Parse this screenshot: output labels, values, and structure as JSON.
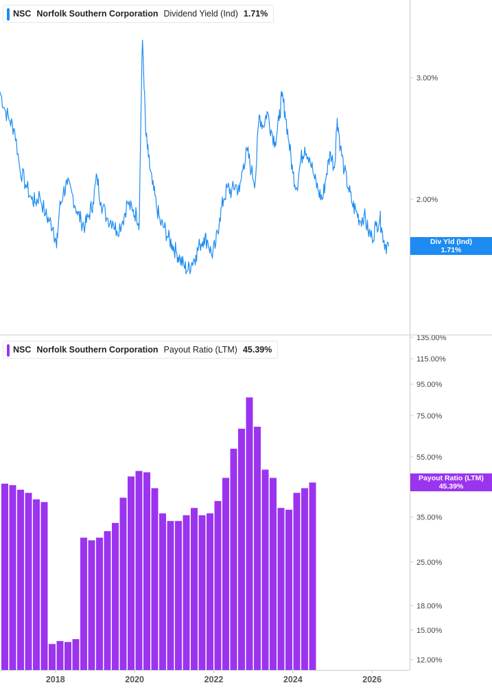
{
  "colors": {
    "yield_line": "#1d8bf1",
    "payout_bar": "#9b34ef",
    "axis": "#c8c8c8",
    "text": "#222222"
  },
  "legend_top": {
    "ticker": "NSC",
    "company": "Norfolk Southern Corporation",
    "metric": "Dividend Yield (Ind)",
    "value": "1.71%"
  },
  "legend_bottom": {
    "ticker": "NSC",
    "company": "Norfolk Southern Corporation",
    "metric": "Payout Ratio (LTM)",
    "value": "45.39%"
  },
  "badge_top": {
    "label": "Div Yld (Ind)",
    "value": "1.71%"
  },
  "badge_bottom": {
    "label": "Payout Ratio (LTM)",
    "value": "45.39%"
  },
  "chart_data": [
    {
      "type": "line",
      "name": "Dividend Yield (Ind)",
      "scale": "log",
      "ylim": [
        1.48,
        3.6
      ],
      "y_ticks": [
        3.0,
        2.0
      ],
      "y_tick_labels": [
        "3.00%",
        "2.00%"
      ],
      "x_ticks": [
        2018,
        2020,
        2022,
        2024,
        2026
      ],
      "xlim": [
        2016.6,
        2026.95
      ],
      "last_value": 1.71,
      "points": [
        [
          2016.6,
          2.86
        ],
        [
          2016.72,
          2.7
        ],
        [
          2016.85,
          2.6
        ],
        [
          2016.97,
          2.52
        ],
        [
          2017.1,
          2.22
        ],
        [
          2017.25,
          2.1
        ],
        [
          2017.4,
          2.0
        ],
        [
          2017.5,
          1.98
        ],
        [
          2017.6,
          2.03
        ],
        [
          2017.75,
          1.9
        ],
        [
          2017.85,
          1.86
        ],
        [
          2017.95,
          1.82
        ],
        [
          2018.03,
          1.7
        ],
        [
          2018.1,
          1.93
        ],
        [
          2018.2,
          2.05
        ],
        [
          2018.3,
          2.1
        ],
        [
          2018.42,
          2.04
        ],
        [
          2018.55,
          1.92
        ],
        [
          2018.65,
          1.86
        ],
        [
          2018.75,
          1.83
        ],
        [
          2018.85,
          1.9
        ],
        [
          2018.95,
          1.98
        ],
        [
          2019.05,
          2.16
        ],
        [
          2019.15,
          1.98
        ],
        [
          2019.3,
          1.88
        ],
        [
          2019.45,
          1.86
        ],
        [
          2019.55,
          1.8
        ],
        [
          2019.7,
          1.86
        ],
        [
          2019.82,
          1.98
        ],
        [
          2019.95,
          1.92
        ],
        [
          2020.05,
          1.9
        ],
        [
          2020.12,
          1.85
        ],
        [
          2020.2,
          3.4
        ],
        [
          2020.28,
          2.5
        ],
        [
          2020.35,
          2.3
        ],
        [
          2020.45,
          2.1
        ],
        [
          2020.55,
          1.96
        ],
        [
          2020.65,
          1.85
        ],
        [
          2020.75,
          1.82
        ],
        [
          2020.85,
          1.76
        ],
        [
          2020.95,
          1.72
        ],
        [
          2021.05,
          1.68
        ],
        [
          2021.15,
          1.64
        ],
        [
          2021.25,
          1.6
        ],
        [
          2021.35,
          1.58
        ],
        [
          2021.45,
          1.62
        ],
        [
          2021.55,
          1.66
        ],
        [
          2021.65,
          1.72
        ],
        [
          2021.75,
          1.76
        ],
        [
          2021.85,
          1.74
        ],
        [
          2021.95,
          1.66
        ],
        [
          2022.05,
          1.72
        ],
        [
          2022.15,
          1.88
        ],
        [
          2022.25,
          2.0
        ],
        [
          2022.35,
          2.08
        ],
        [
          2022.45,
          2.05
        ],
        [
          2022.55,
          2.1
        ],
        [
          2022.65,
          2.05
        ],
        [
          2022.75,
          2.25
        ],
        [
          2022.85,
          2.35
        ],
        [
          2022.95,
          2.2
        ],
        [
          2023.05,
          2.12
        ],
        [
          2023.15,
          2.65
        ],
        [
          2023.25,
          2.55
        ],
        [
          2023.35,
          2.68
        ],
        [
          2023.45,
          2.52
        ],
        [
          2023.55,
          2.42
        ],
        [
          2023.65,
          2.6
        ],
        [
          2023.72,
          2.82
        ],
        [
          2023.8,
          2.68
        ],
        [
          2023.9,
          2.42
        ],
        [
          2024.0,
          2.18
        ],
        [
          2024.1,
          2.08
        ],
        [
          2024.2,
          2.28
        ],
        [
          2024.3,
          2.38
        ],
        [
          2024.42,
          2.3
        ],
        [
          2024.55,
          2.14
        ],
        [
          2024.65,
          2.05
        ],
        [
          2024.75,
          2.0
        ],
        [
          2024.85,
          2.18
        ],
        [
          2024.95,
          2.34
        ],
        [
          2025.05,
          2.22
        ],
        [
          2025.12,
          2.62
        ],
        [
          2025.2,
          2.38
        ],
        [
          2025.3,
          2.2
        ],
        [
          2025.4,
          2.08
        ],
        [
          2025.5,
          1.97
        ],
        [
          2025.6,
          1.92
        ],
        [
          2025.7,
          1.86
        ],
        [
          2025.8,
          1.9
        ],
        [
          2025.9,
          1.8
        ],
        [
          2026.0,
          1.76
        ],
        [
          2026.1,
          1.83
        ],
        [
          2026.2,
          1.88
        ],
        [
          2026.25,
          1.8
        ],
        [
          2026.33,
          1.72
        ],
        [
          2026.42,
          1.71
        ]
      ]
    },
    {
      "type": "bar",
      "name": "Payout Ratio (LTM)",
      "scale": "log",
      "ylim": [
        11.5,
        138
      ],
      "y_ticks": [
        135,
        115,
        95,
        75,
        55,
        35,
        25,
        18,
        15,
        12
      ],
      "y_tick_labels": [
        "135.00%",
        "115.00%",
        "95.00%",
        "75.00%",
        "55.00%",
        "35.00%",
        "25.00%",
        "18.00%",
        "15.00%",
        "12.00%"
      ],
      "x_ticks": [
        2018,
        2020,
        2022,
        2024,
        2026
      ],
      "xlim": [
        2016.6,
        2026.95
      ],
      "last_value": 45.39,
      "values": [
        45.0,
        44.5,
        43.0,
        42.0,
        40.0,
        39.2,
        13.5,
        13.8,
        13.7,
        14.0,
        30.0,
        29.4,
        30.0,
        31.5,
        33.5,
        40.5,
        47.5,
        49.5,
        49.0,
        43.5,
        36.0,
        34.0,
        34.0,
        35.5,
        37.5,
        35.5,
        36.0,
        39.5,
        47.0,
        58.5,
        68.0,
        86.0,
        69.0,
        50.0,
        47.0,
        37.5,
        37.0,
        42.0,
        43.5,
        45.39
      ]
    }
  ]
}
